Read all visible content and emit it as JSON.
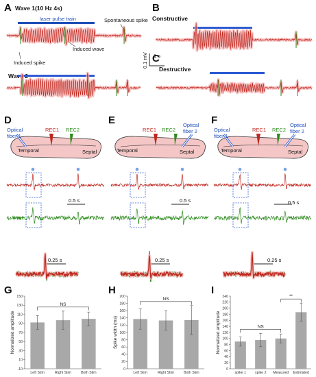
{
  "panels": {
    "A": "A",
    "B": "B",
    "C": "C",
    "D": "D",
    "E": "E",
    "F": "F",
    "G": "G",
    "H": "H",
    "I": "I"
  },
  "panelA": {
    "wave1_title": "Wave 1(10 Hz 4s)",
    "laser_label": "laser pulse train",
    "spontaneous_label": "Spontaneous spike",
    "induced_wave_label": "Induced wave",
    "induced_spike_label": "Induced spike",
    "wave2_title": "Wave 2"
  },
  "panelB": {
    "title": "Constructive"
  },
  "panelC": {
    "title": "Destructive"
  },
  "scalebar_main": {
    "voltage": "0.1 mV",
    "time": "1 s"
  },
  "panelD": {
    "fiber1": "Optical",
    "fiber1b": "fiber 1",
    "rec1": "REC1",
    "rec2": "REC2",
    "temporal": "Temporal",
    "septal": "Septal",
    "scale1": "0.5 s",
    "scale2": "0.25 s"
  },
  "panelE": {
    "fiber2": "Optical",
    "fiber2b": "fiber 2",
    "rec1": "REC1",
    "rec2": "REC2",
    "temporal": "Temporal",
    "septal": "Septal",
    "scale1": "0.5 s",
    "scale2": "0.25 s"
  },
  "panelF": {
    "fiber1": "Optical",
    "fiber1b": "fiber 1",
    "fiber2": "Optical",
    "fiber2b": "fiber 2",
    "rec1": "REC1",
    "rec2": "REC2",
    "temporal": "Temporal",
    "septal": "Septal",
    "scale1": "0.5 s",
    "scale2": "0.25 s"
  },
  "colors": {
    "rec1": "#c0271f",
    "rec2": "#2e8b1e",
    "laser": "#2d5bd3",
    "bar": "#a8a8a8",
    "tissue": "#f4c6c6"
  },
  "chart_data": [
    {
      "type": "bar",
      "panel": "G",
      "categories": [
        "Left Stim",
        "Right Stim",
        "Both Stim"
      ],
      "values": [
        92,
        97,
        100
      ],
      "errors": [
        15,
        20,
        15
      ],
      "ylabel": "Normalized amplitude",
      "ylim": [
        -10,
        150
      ],
      "yticks": [
        -10,
        10,
        30,
        50,
        70,
        90,
        110,
        130,
        150
      ],
      "significance": [
        {
          "from": 0,
          "to": 2,
          "label": "NS"
        }
      ]
    },
    {
      "type": "bar",
      "panel": "H",
      "categories": [
        "Left Stim",
        "Right Stim",
        "Both Stim"
      ],
      "values": [
        137,
        133,
        134
      ],
      "errors": [
        28,
        27,
        40
      ],
      "ylabel": "Spike width (ms)",
      "ylim": [
        0,
        200
      ],
      "yticks": [
        0,
        20,
        40,
        60,
        80,
        100,
        120,
        140,
        160,
        180,
        200
      ],
      "significance": [
        {
          "from": 0,
          "to": 2,
          "label": "NS"
        }
      ]
    },
    {
      "type": "bar",
      "panel": "I",
      "categories": [
        "spike 1",
        "spike 2",
        "Measured",
        "Estimated"
      ],
      "values": [
        90,
        95,
        100,
        187
      ],
      "errors": [
        15,
        22,
        15,
        30
      ],
      "ylabel": "Normalized amplitude",
      "ylim": [
        0,
        240
      ],
      "yticks": [
        0,
        20,
        40,
        60,
        80,
        100,
        120,
        140,
        160,
        180,
        200,
        220,
        240
      ],
      "significance": [
        {
          "from": 0,
          "to": 2,
          "label": "NS"
        },
        {
          "from": 2,
          "to": 3,
          "label": "**"
        }
      ]
    }
  ]
}
